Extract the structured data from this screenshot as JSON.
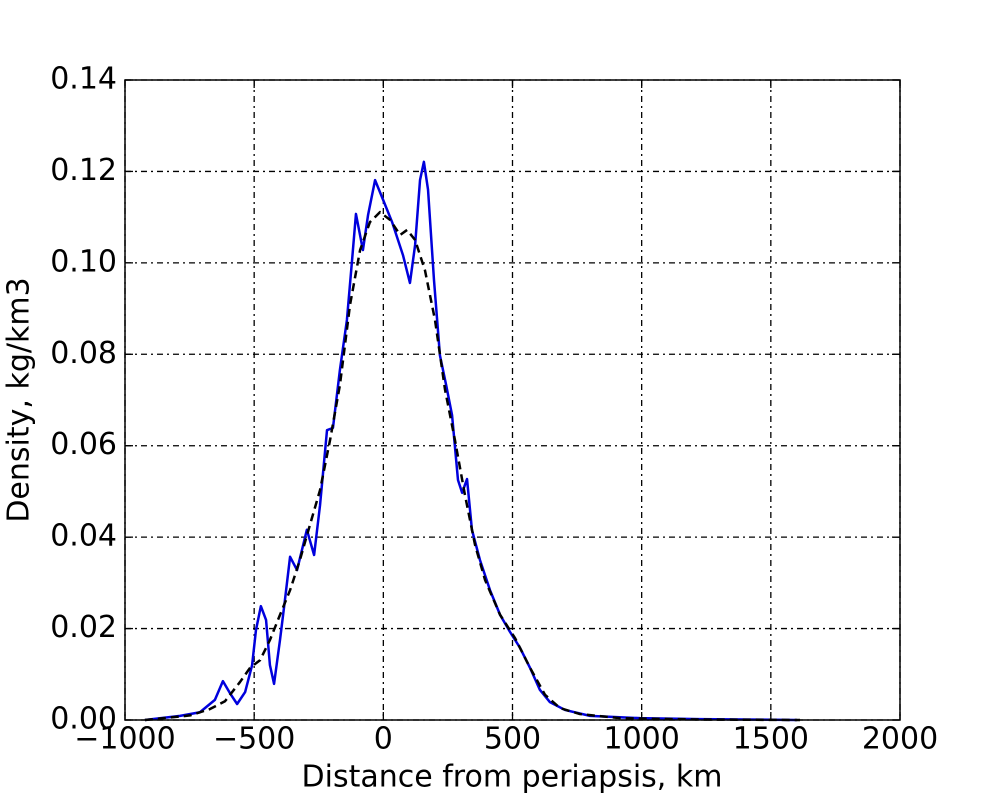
{
  "chart_data": {
    "type": "line",
    "xlabel": "Distance from periapsis, km",
    "ylabel": "Density, kg/km3",
    "xlim": [
      -1000,
      2000
    ],
    "ylim": [
      0,
      0.14
    ],
    "xticks": [
      {
        "value": -1000,
        "label": "−1000"
      },
      {
        "value": -500,
        "label": "−500"
      },
      0,
      500,
      1000,
      1500,
      2000
    ],
    "yticks": [
      {
        "value": 0,
        "label": "0.00"
      },
      {
        "value": 0.02,
        "label": "0.02"
      },
      {
        "value": 0.04,
        "label": "0.04"
      },
      {
        "value": 0.06,
        "label": "0.06"
      },
      {
        "value": 0.08,
        "label": "0.08"
      },
      {
        "value": 0.1,
        "label": "0.10"
      },
      {
        "value": 0.12,
        "label": "0.12"
      },
      {
        "value": 0.14,
        "label": "0.14"
      }
    ],
    "grid": true,
    "series": [
      {
        "color": "#0000dd",
        "dash": false,
        "x": [
          -923,
          -787,
          -710,
          -652,
          -621,
          -594,
          -566,
          -535,
          -508,
          -493,
          -474,
          -454,
          -439,
          -423,
          -400,
          -381,
          -361,
          -334,
          -315,
          -296,
          -268,
          -245,
          -218,
          -195,
          -168,
          -141,
          -121,
          -106,
          -79,
          -59,
          -32,
          -1,
          34,
          76,
          103,
          123,
          142,
          157,
          173,
          196,
          219,
          243,
          266,
          289,
          305,
          324,
          343,
          374,
          413,
          452,
          490,
          529,
          568,
          606,
          645,
          703,
          800,
          994,
          1226,
          1601
        ],
        "values": [
          0,
          0.0009,
          0.0017,
          0.0044,
          0.0085,
          0.0059,
          0.0035,
          0.0061,
          0.012,
          0.0197,
          0.0249,
          0.0219,
          0.012,
          0.0079,
          0.0175,
          0.0262,
          0.0357,
          0.0328,
          0.0372,
          0.0416,
          0.0361,
          0.047,
          0.0634,
          0.0639,
          0.0766,
          0.0875,
          0.1006,
          0.1107,
          0.1028,
          0.1105,
          0.1181,
          0.1138,
          0.1089,
          0.1017,
          0.0956,
          0.1039,
          0.1181,
          0.1221,
          0.116,
          0.0963,
          0.0798,
          0.0733,
          0.0667,
          0.0525,
          0.0497,
          0.0527,
          0.0416,
          0.035,
          0.0284,
          0.023,
          0.0193,
          0.0158,
          0.0114,
          0.0066,
          0.0039,
          0.0022,
          0.0009,
          0.0004,
          0.0002,
          0
        ]
      },
      {
        "color": "#000000",
        "dash": true,
        "x": [
          -923,
          -748,
          -671,
          -613,
          -555,
          -516,
          -477,
          -439,
          -400,
          -361,
          -323,
          -284,
          -245,
          -206,
          -168,
          -129,
          -90,
          -52,
          -13,
          26,
          65,
          92,
          123,
          161,
          200,
          239,
          277,
          316,
          355,
          394,
          452,
          510,
          568,
          626,
          684,
          761,
          916,
          1226,
          1613
        ],
        "values": [
          0,
          0.001,
          0.0024,
          0.0041,
          0.0083,
          0.0114,
          0.0131,
          0.0175,
          0.023,
          0.0284,
          0.035,
          0.0427,
          0.0503,
          0.0613,
          0.0733,
          0.0908,
          0.1028,
          0.1089,
          0.1111,
          0.1094,
          0.1061,
          0.1072,
          0.105,
          0.0984,
          0.0875,
          0.0722,
          0.0613,
          0.0492,
          0.0383,
          0.0306,
          0.023,
          0.0179,
          0.0114,
          0.0055,
          0.0026,
          0.0013,
          0.0004,
          0.0001,
          0
        ]
      }
    ]
  }
}
